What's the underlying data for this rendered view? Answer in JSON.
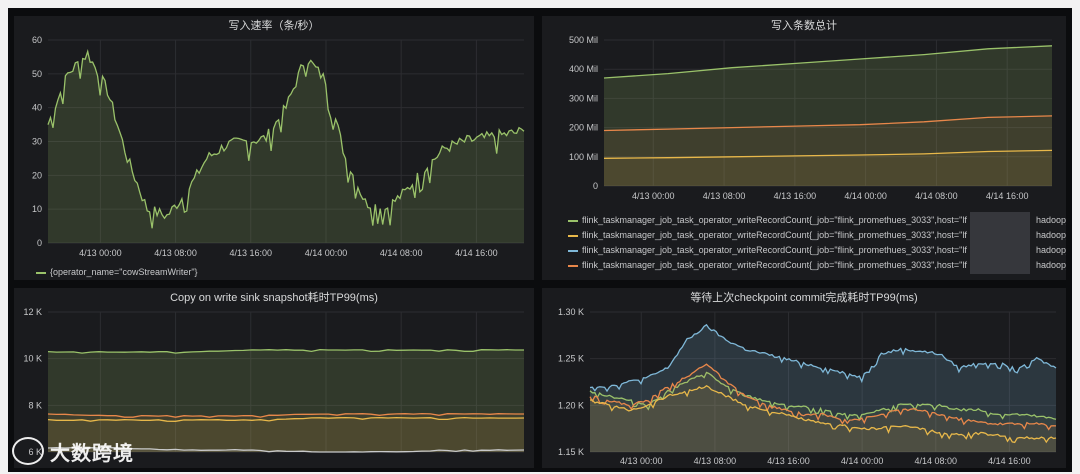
{
  "panels": [
    {
      "title": "写入速率（条/秒）",
      "x_ticks": [
        "4/13 00:00",
        "4/13 08:00",
        "4/13 16:00",
        "4/14 00:00",
        "4/14 08:00",
        "4/14 16:00"
      ],
      "y_ticks": [
        "60",
        "50",
        "40",
        "30",
        "20",
        "10",
        "0"
      ],
      "legend": [
        {
          "label": "{operator_name=\"cowStreamWriter\"}",
          "color": "#9ac26a"
        }
      ]
    },
    {
      "title": "写入条数总计",
      "x_ticks": [
        "4/13 00:00",
        "4/13 08:00",
        "4/13 16:00",
        "4/14 00:00",
        "4/14 08:00",
        "4/14 16:00"
      ],
      "y_ticks": [
        "500 Mil",
        "400 Mil",
        "300 Mil",
        "200 Mil",
        "100 Mil",
        "0"
      ],
      "legend": [
        {
          "label": "flink_taskmanager_job_task_operator_writeRecordCount{_job=\"flink_promethues_3033\",host=\"lf",
          "tail": "hadoop_lo",
          "color": "#9ac26a"
        },
        {
          "label": "flink_taskmanager_job_task_operator_writeRecordCount{_job=\"flink_promethues_3033\",host=\"lf",
          "tail": "hadoop_lo",
          "color": "#e8b84a"
        },
        {
          "label": "flink_taskmanager_job_task_operator_writeRecordCount{_job=\"flink_promethues_3033\",host=\"lf",
          "tail": "hadoop_lo",
          "color": "#7fb8d8"
        },
        {
          "label": "flink_taskmanager_job_task_operator_writeRecordCount{_job=\"flink_promethues_3033\",host=\"lf",
          "tail": "hadoop_lo",
          "color": "#e8874a"
        }
      ]
    },
    {
      "title": "Copy on write sink snapshot耗时TP99(ms)",
      "y_ticks": [
        "12 K",
        "10 K",
        "8 K",
        "6 K"
      ]
    },
    {
      "title": "等待上次checkpoint commit完成耗时TP99(ms)",
      "x_ticks": [
        "4/13 00:00",
        "4/13 08:00",
        "4/13 16:00",
        "4/14 00:00",
        "4/14 08:00",
        "4/14 16:00"
      ],
      "y_ticks": [
        "1.30 K",
        "1.25 K",
        "1.20 K",
        "1.15 K"
      ]
    }
  ],
  "watermark": "大数跨境",
  "chart_data": [
    {
      "type": "line",
      "title": "写入速率（条/秒）",
      "xlabel": "",
      "ylabel": "",
      "ylim": [
        0,
        60
      ],
      "x": [
        "4/12 20:00",
        "4/12 22:00",
        "4/13 00:00",
        "4/13 02:00",
        "4/13 04:00",
        "4/13 06:00",
        "4/13 08:00",
        "4/13 10:00",
        "4/13 12:00",
        "4/13 14:00",
        "4/13 16:00",
        "4/13 18:00",
        "4/13 20:00",
        "4/13 22:00",
        "4/14 00:00",
        "4/14 02:00",
        "4/14 04:00",
        "4/14 06:00",
        "4/14 08:00",
        "4/14 10:00",
        "4/14 12:00",
        "4/14 14:00",
        "4/14 16:00",
        "4/14 18:00",
        "4/14 20:00"
      ],
      "series": [
        {
          "name": "{operator_name=\"cowStreamWriter\"}",
          "color": "#9ac26a",
          "values": [
            35,
            50,
            56,
            45,
            25,
            10,
            8,
            15,
            25,
            29,
            30,
            31,
            40,
            55,
            48,
            25,
            12,
            10,
            15,
            22,
            28,
            30,
            31,
            32,
            33
          ]
        }
      ],
      "grid": true,
      "legend": "bottom-left"
    },
    {
      "type": "line",
      "title": "写入条数总计",
      "ylim": [
        0,
        500
      ],
      "y_unit": "Mil",
      "x": [
        "4/12 20:00",
        "4/13 00:00",
        "4/13 08:00",
        "4/13 16:00",
        "4/14 00:00",
        "4/14 08:00",
        "4/14 16:00",
        "4/14 20:00"
      ],
      "series": [
        {
          "color": "#9ac26a",
          "values": [
            370,
            385,
            405,
            420,
            435,
            450,
            470,
            480
          ]
        },
        {
          "color": "#e8874a",
          "values": [
            190,
            195,
            200,
            205,
            210,
            220,
            235,
            240
          ]
        },
        {
          "color": "#e8b84a",
          "values": [
            95,
            97,
            100,
            103,
            106,
            110,
            118,
            122
          ]
        }
      ],
      "grid": true,
      "legend": "bottom"
    },
    {
      "type": "line",
      "title": "Copy on write sink snapshot耗时TP99(ms)",
      "ylim": [
        5,
        12
      ],
      "y_unit": "K",
      "x": [
        "4/12 20:00",
        "4/13 00:00",
        "4/13 08:00",
        "4/13 16:00",
        "4/14 00:00",
        "4/14 08:00",
        "4/14 16:00",
        "4/14 20:00"
      ],
      "series": [
        {
          "color": "#9ac26a",
          "values": [
            10.0,
            10.0,
            10.0,
            10.1,
            10.1,
            10.1,
            10.1,
            10.1
          ]
        },
        {
          "color": "#e8874a",
          "values": [
            6.9,
            6.8,
            6.8,
            6.8,
            6.9,
            6.9,
            6.9,
            6.9
          ]
        },
        {
          "color": "#e8b84a",
          "values": [
            6.6,
            6.6,
            6.6,
            6.6,
            6.7,
            6.7,
            6.7,
            6.7
          ]
        },
        {
          "color": "#c8c9ca",
          "values": [
            5.2,
            5.2,
            5.1,
            5.1,
            5.0,
            5.0,
            5.1,
            5.1
          ]
        }
      ],
      "grid": true
    },
    {
      "type": "line",
      "title": "等待上次checkpoint commit完成耗时TP99(ms)",
      "ylim": [
        1.15,
        1.3
      ],
      "y_unit": "K",
      "x": [
        "4/12 20:00",
        "4/12 22:00",
        "4/13 00:00",
        "4/13 02:00",
        "4/13 04:00",
        "4/13 06:00",
        "4/13 08:00",
        "4/13 10:00",
        "4/13 12:00",
        "4/13 14:00",
        "4/13 16:00",
        "4/13 18:00",
        "4/13 20:00",
        "4/13 22:00",
        "4/14 00:00",
        "4/14 02:00",
        "4/14 04:00",
        "4/14 06:00",
        "4/14 08:00",
        "4/14 10:00",
        "4/14 12:00",
        "4/14 14:00",
        "4/14 16:00",
        "4/14 18:00",
        "4/14 20:00"
      ],
      "series": [
        {
          "color": "#7fb8d8",
          "values": [
            1.22,
            1.22,
            1.225,
            1.23,
            1.24,
            1.27,
            1.285,
            1.27,
            1.26,
            1.255,
            1.25,
            1.245,
            1.24,
            1.235,
            1.23,
            1.255,
            1.26,
            1.258,
            1.255,
            1.24,
            1.245,
            1.245,
            1.24,
            1.25,
            1.24
          ]
        },
        {
          "color": "#9ac26a",
          "values": [
            1.215,
            1.21,
            1.205,
            1.2,
            1.215,
            1.225,
            1.235,
            1.22,
            1.21,
            1.205,
            1.2,
            1.198,
            1.195,
            1.19,
            1.19,
            1.195,
            1.2,
            1.2,
            1.2,
            1.195,
            1.195,
            1.19,
            1.19,
            1.188,
            1.185
          ]
        },
        {
          "color": "#e8874a",
          "values": [
            1.21,
            1.205,
            1.2,
            1.205,
            1.22,
            1.23,
            1.245,
            1.225,
            1.21,
            1.2,
            1.195,
            1.19,
            1.19,
            1.185,
            1.185,
            1.19,
            1.195,
            1.195,
            1.19,
            1.185,
            1.182,
            1.18,
            1.18,
            1.18,
            1.178
          ]
        },
        {
          "color": "#e8b84a",
          "values": [
            1.205,
            1.2,
            1.195,
            1.2,
            1.21,
            1.215,
            1.22,
            1.21,
            1.2,
            1.195,
            1.19,
            1.185,
            1.18,
            1.178,
            1.175,
            1.175,
            1.178,
            1.175,
            1.17,
            1.168,
            1.17,
            1.168,
            1.165,
            1.165,
            1.165
          ]
        }
      ],
      "grid": true
    }
  ]
}
